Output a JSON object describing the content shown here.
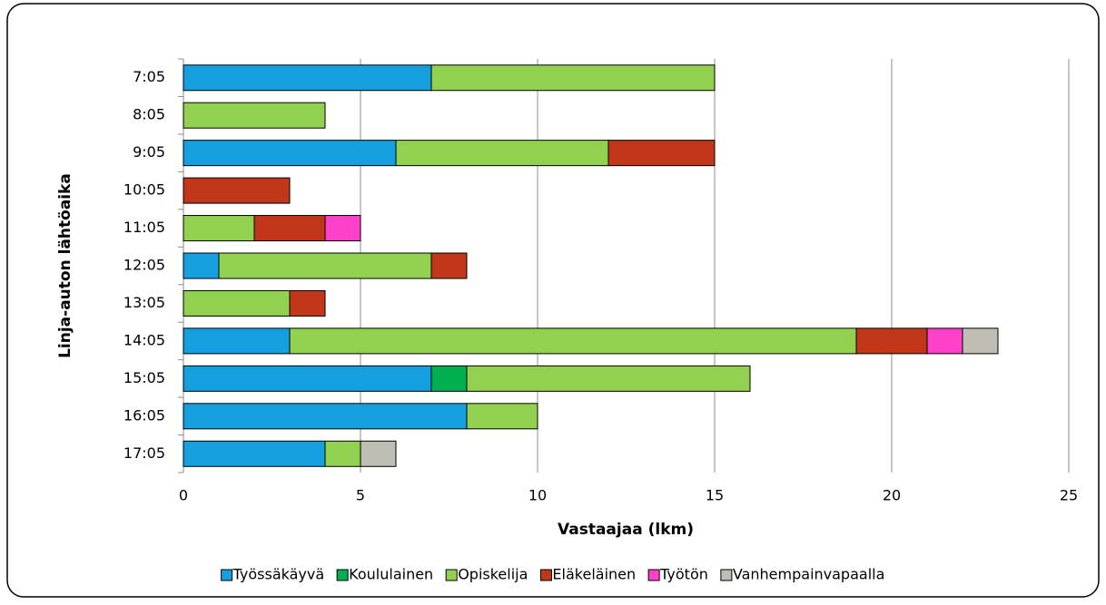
{
  "chart_data": {
    "type": "stacked-barh",
    "xlabel": "Vastaajaa (lkm)",
    "ylabel": "Linja-auton lähtöaika",
    "categories": [
      "7:05",
      "8:05",
      "9:05",
      "10:05",
      "11:05",
      "12:05",
      "13:05",
      "14:05",
      "15:05",
      "16:05",
      "17:05"
    ],
    "series": [
      {
        "name": "Työssäkäyvä",
        "color": "#159fdf",
        "values": [
          7,
          0,
          6,
          0,
          0,
          1,
          0,
          3,
          7,
          8,
          4
        ]
      },
      {
        "name": "Koululainen",
        "color": "#00b050",
        "values": [
          0,
          0,
          0,
          0,
          0,
          0,
          0,
          0,
          1,
          0,
          0
        ]
      },
      {
        "name": "Opiskelija",
        "color": "#92d050",
        "values": [
          8,
          4,
          6,
          0,
          2,
          6,
          3,
          16,
          8,
          2,
          1
        ]
      },
      {
        "name": "Eläkeläinen",
        "color": "#c0371a",
        "values": [
          0,
          0,
          3,
          3,
          2,
          1,
          1,
          2,
          0,
          0,
          0
        ]
      },
      {
        "name": "Työtön",
        "color": "#ff40c8",
        "values": [
          0,
          0,
          0,
          0,
          1,
          0,
          0,
          1,
          0,
          0,
          0
        ]
      },
      {
        "name": "Vanhempainvapaalla",
        "color": "#c0bdb5",
        "values": [
          0,
          0,
          0,
          0,
          0,
          0,
          0,
          1,
          0,
          0,
          1
        ]
      }
    ],
    "xlim": [
      0,
      25
    ],
    "xticks": [
      0,
      5,
      10,
      15,
      20,
      25
    ],
    "grid": true,
    "legend": "bottom"
  }
}
